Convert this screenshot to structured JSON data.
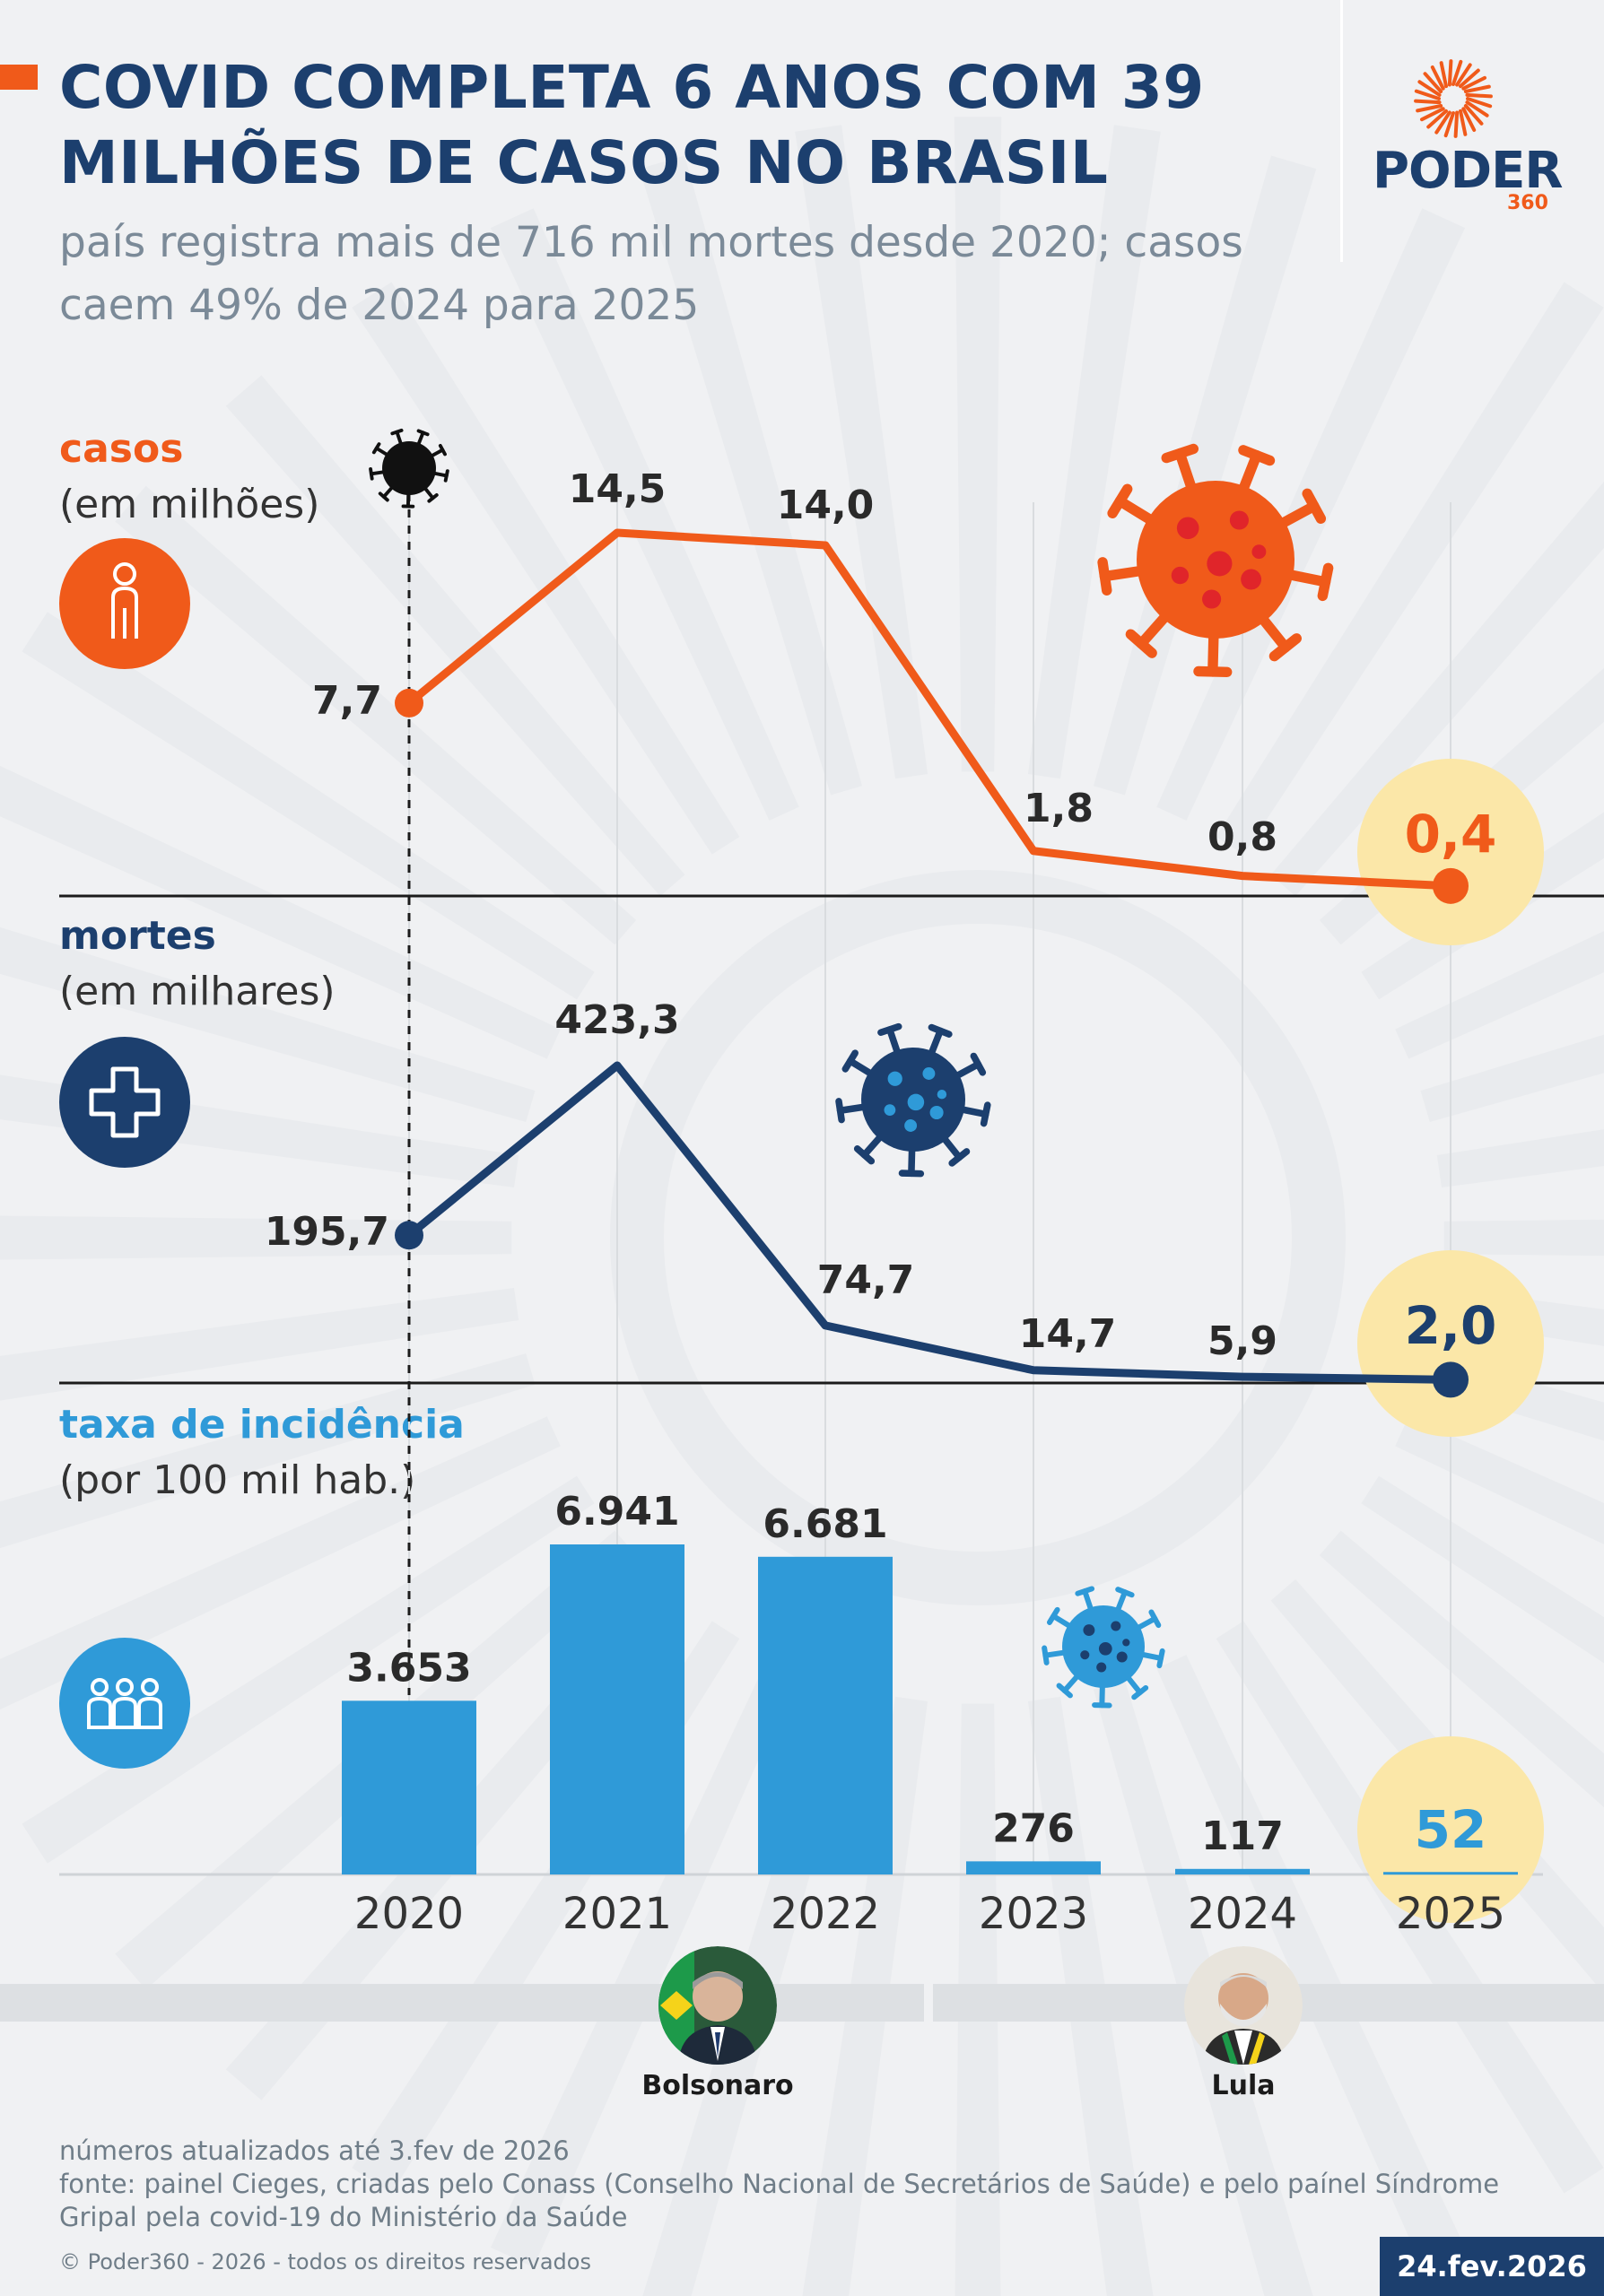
{
  "header": {
    "title": "COVID COMPLETA 6 ANOS COM 39 MILHÕES DE CASOS NO BRASIL",
    "subtitle": "país registra mais de 716 mil mortes desde 2020; casos caem 49% de 2024 para 2025"
  },
  "logo": {
    "word": "PODER",
    "number": "360"
  },
  "colors": {
    "orange": "#f05a1a",
    "navy": "#1c3f6e",
    "blue": "#2f9ad8",
    "highlight": "#fbe7a8",
    "footer_text": "#6f7d88"
  },
  "sections": {
    "cases": {
      "title": "casos",
      "unit": "(em milhões)",
      "icon": "person-icon"
    },
    "deaths": {
      "title": "mortes",
      "unit": "(em milhares)",
      "icon": "cross-icon"
    },
    "incidence": {
      "title": "taxa de incidência",
      "unit": "(por 100 mil hab.)",
      "icon": "group-icon"
    }
  },
  "chart_data": [
    {
      "type": "line",
      "title": "casos",
      "ylabel": "(em milhões)",
      "x": [
        "2020",
        "2021",
        "2022",
        "2023",
        "2024",
        "2025"
      ],
      "values": [
        7.7,
        14.5,
        14.0,
        1.8,
        0.8,
        0.4
      ],
      "labels": [
        "7,7",
        "14,5",
        "14,0",
        "1,8",
        "0,8",
        "0,4"
      ],
      "ylim": [
        0,
        14.5
      ],
      "color": "#f05a1a",
      "highlight": "2025"
    },
    {
      "type": "line",
      "title": "mortes",
      "ylabel": "(em milhares)",
      "x": [
        "2020",
        "2021",
        "2022",
        "2023",
        "2024",
        "2025"
      ],
      "values": [
        195.7,
        423.3,
        74.7,
        14.7,
        5.9,
        2.0
      ],
      "labels": [
        "195,7",
        "423,3",
        "74,7",
        "14,7",
        "5,9",
        "2,0"
      ],
      "ylim": [
        0,
        423.3
      ],
      "color": "#1c3f6e",
      "highlight": "2025"
    },
    {
      "type": "bar",
      "title": "taxa de incidência",
      "ylabel": "(por 100 mil hab.)",
      "categories": [
        "2020",
        "2021",
        "2022",
        "2023",
        "2024",
        "2025"
      ],
      "values": [
        3653,
        6941,
        6681,
        276,
        117,
        52
      ],
      "labels": [
        "3.653",
        "6.941",
        "6.681",
        "276",
        "117",
        "52"
      ],
      "ylim": [
        0,
        6941
      ],
      "color": "#2f9ad8",
      "highlight": "2025"
    }
  ],
  "presidents": [
    {
      "name": "Bolsonaro"
    },
    {
      "name": "Lula"
    }
  ],
  "footer": {
    "updated": "números atualizados até 3.fev de 2026",
    "source": "fonte: painel Cieges, criadas pelo Conass (Conselho Nacional de Secretários de Saúde) e pelo paínel Síndrome Gripal pela covid-19 do Ministério da Saúde",
    "copyright": "© Poder360 - 2026 - todos os direitos reservados",
    "date": "24.fev.2026"
  }
}
